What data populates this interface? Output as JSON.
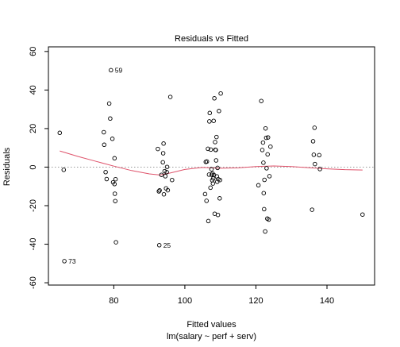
{
  "chart_data": {
    "type": "scatter",
    "title": "Residuals vs Fitted",
    "xlabel": "Fitted values",
    "sublabel": "lm(salary ~ perf + serv)",
    "ylabel": "Residuals",
    "xlim": [
      61.6,
      153.4
    ],
    "ylim": [
      -61.2,
      62.4
    ],
    "xticks": [
      80,
      100,
      120,
      140
    ],
    "yticks": [
      -60,
      -40,
      -20,
      0,
      20,
      40,
      60
    ],
    "grid": false,
    "colors": {
      "points": "#000000",
      "smooth": "#DF536B",
      "zero_line": "#999999"
    },
    "points": [
      [
        64.8,
        17.8
      ],
      [
        65.9,
        -1.4
      ],
      [
        66.1,
        -48.8
      ],
      [
        77.2,
        18.1
      ],
      [
        77.3,
        11.6
      ],
      [
        77.7,
        -2.6
      ],
      [
        78.0,
        -6.2
      ],
      [
        78.7,
        33.0
      ],
      [
        79.0,
        25.2
      ],
      [
        79.2,
        50.3
      ],
      [
        79.6,
        14.7
      ],
      [
        79.8,
        -7.9
      ],
      [
        80.2,
        4.6
      ],
      [
        80.2,
        -8.8
      ],
      [
        80.3,
        -13.8
      ],
      [
        80.4,
        -17.6
      ],
      [
        80.5,
        -6.3
      ],
      [
        80.6,
        -39.0
      ],
      [
        92.4,
        9.4
      ],
      [
        92.7,
        -12.6
      ],
      [
        92.8,
        -40.5
      ],
      [
        92.9,
        -12.1
      ],
      [
        93.4,
        -4.0
      ],
      [
        93.8,
        2.5
      ],
      [
        93.9,
        7.2
      ],
      [
        94.0,
        12.2
      ],
      [
        94.1,
        -14.1
      ],
      [
        94.3,
        -2.1
      ],
      [
        94.5,
        -4.7
      ],
      [
        94.7,
        -11.0
      ],
      [
        94.9,
        -2.6
      ],
      [
        95.0,
        0.1
      ],
      [
        95.2,
        -12.0
      ],
      [
        95.9,
        36.4
      ],
      [
        96.4,
        -6.7
      ],
      [
        105.7,
        -14.0
      ],
      [
        105.9,
        2.7
      ],
      [
        106.1,
        -17.5
      ],
      [
        106.2,
        2.9
      ],
      [
        106.5,
        9.5
      ],
      [
        106.6,
        -28.0
      ],
      [
        106.8,
        -3.9
      ],
      [
        106.9,
        23.7
      ],
      [
        107.0,
        28.1
      ],
      [
        107.2,
        -10.7
      ],
      [
        107.3,
        9.1
      ],
      [
        107.5,
        -1.1
      ],
      [
        107.6,
        -4.0
      ],
      [
        107.7,
        -6.8
      ],
      [
        107.8,
        -3.3
      ],
      [
        107.9,
        -8.5
      ],
      [
        108.0,
        -5.9
      ],
      [
        108.1,
        24.0
      ],
      [
        108.2,
        -4.1
      ],
      [
        108.3,
        35.7
      ],
      [
        108.4,
        -24.2
      ],
      [
        108.5,
        13.0
      ],
      [
        108.6,
        9.0
      ],
      [
        108.7,
        8.9
      ],
      [
        108.8,
        3.5
      ],
      [
        108.9,
        15.6
      ],
      [
        109.0,
        -4.8
      ],
      [
        109.1,
        -7.6
      ],
      [
        109.2,
        -0.4
      ],
      [
        109.3,
        -24.8
      ],
      [
        109.4,
        -6.3
      ],
      [
        109.6,
        29.1
      ],
      [
        109.8,
        -16.2
      ],
      [
        109.9,
        -6.7
      ],
      [
        110.1,
        38.2
      ],
      [
        120.7,
        -9.4
      ],
      [
        121.5,
        34.3
      ],
      [
        121.8,
        8.9
      ],
      [
        122.0,
        12.7
      ],
      [
        122.1,
        2.3
      ],
      [
        122.2,
        -13.5
      ],
      [
        122.3,
        -21.8
      ],
      [
        122.4,
        -6.6
      ],
      [
        122.6,
        -33.4
      ],
      [
        122.7,
        20.1
      ],
      [
        122.9,
        15.2
      ],
      [
        123.0,
        -0.6
      ],
      [
        123.2,
        -26.7
      ],
      [
        123.3,
        6.6
      ],
      [
        123.4,
        15.4
      ],
      [
        123.6,
        -27.2
      ],
      [
        123.8,
        -4.7
      ],
      [
        124.1,
        10.6
      ],
      [
        135.8,
        -22.1
      ],
      [
        136.1,
        13.4
      ],
      [
        136.3,
        6.4
      ],
      [
        136.5,
        20.4
      ],
      [
        136.6,
        1.6
      ],
      [
        137.8,
        6.2
      ],
      [
        138.0,
        -1.0
      ],
      [
        150.0,
        -24.6
      ]
    ],
    "point_labels": [
      {
        "x": 79.2,
        "y": 50.3,
        "text": "59"
      },
      {
        "x": 92.8,
        "y": -40.5,
        "text": "25"
      },
      {
        "x": 66.1,
        "y": -48.8,
        "text": "73"
      }
    ],
    "smooth": [
      [
        64.8,
        8.4
      ],
      [
        70,
        5.5
      ],
      [
        75,
        3.0
      ],
      [
        80,
        0.5
      ],
      [
        85,
        -1.8
      ],
      [
        90,
        -3.5
      ],
      [
        93,
        -4.1
      ],
      [
        96,
        -3.0
      ],
      [
        100,
        -1.2
      ],
      [
        105,
        -0.2
      ],
      [
        110,
        -0.6
      ],
      [
        115,
        -0.4
      ],
      [
        120,
        0.3
      ],
      [
        125,
        0.6
      ],
      [
        130,
        0.3
      ],
      [
        135,
        -0.3
      ],
      [
        140,
        -0.9
      ],
      [
        145,
        -1.3
      ],
      [
        150,
        -1.5
      ]
    ]
  }
}
